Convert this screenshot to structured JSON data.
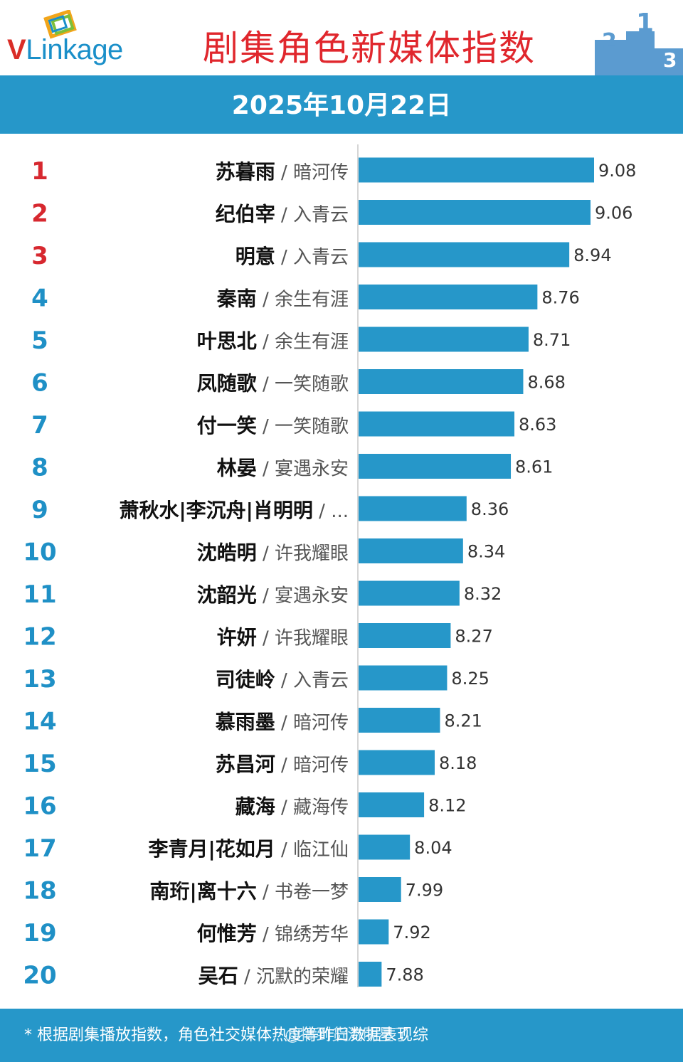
{
  "brand": {
    "v": "V",
    "rest": "Linkage"
  },
  "title": "剧集角色新媒体指数",
  "date": "2025年10月22日",
  "footer_note": "* 根据剧集播放指数，角色社交媒体热度等昨日数据表现综",
  "watermark": "@搞到货流明星了",
  "colors": {
    "bar": "#2697c9",
    "rank_top": "#d7282f",
    "rank_other": "#1f90c6",
    "title": "#e0272d"
  },
  "chart_data": {
    "type": "bar",
    "orientation": "horizontal",
    "categories": [
      "苏暮雨 / 暗河传",
      "纪伯宰 / 入青云",
      "明意 / 入青云",
      "秦南 / 余生有涯",
      "叶思北 / 余生有涯",
      "凤随歌 / 一笑随歌",
      "付一笑 / 一笑随歌",
      "林晏 / 宴遇永安",
      "萧秋水|李沉舟|肖明明 / ...",
      "沈皓明 / 许我耀眼",
      "沈韶光 / 宴遇永安",
      "许妍 / 许我耀眼",
      "司徒岭 / 入青云",
      "慕雨墨 / 暗河传",
      "苏昌河 / 暗河传",
      "藏海 / 藏海传",
      "李青月|花如月 / 临江仙",
      "南珩|离十六 / 书卷一梦",
      "何惟芳 / 锦绣芳华",
      "吴石 / 沉默的荣耀"
    ],
    "rows": [
      {
        "rank": "1",
        "role": "苏暮雨",
        "drama": "暗河传",
        "value": 9.08,
        "label": "9.08"
      },
      {
        "rank": "2",
        "role": "纪伯宰",
        "drama": "入青云",
        "value": 9.06,
        "label": "9.06"
      },
      {
        "rank": "3",
        "role": "明意",
        "drama": "入青云",
        "value": 8.94,
        "label": "8.94"
      },
      {
        "rank": "4",
        "role": "秦南",
        "drama": "余生有涯",
        "value": 8.76,
        "label": "8.76"
      },
      {
        "rank": "5",
        "role": "叶思北",
        "drama": "余生有涯",
        "value": 8.71,
        "label": "8.71"
      },
      {
        "rank": "6",
        "role": "凤随歌",
        "drama": "一笑随歌",
        "value": 8.68,
        "label": "8.68"
      },
      {
        "rank": "7",
        "role": "付一笑",
        "drama": "一笑随歌",
        "value": 8.63,
        "label": "8.63"
      },
      {
        "rank": "8",
        "role": "林晏",
        "drama": "宴遇永安",
        "value": 8.61,
        "label": "8.61"
      },
      {
        "rank": "9",
        "role": "萧秋水|李沉舟|肖明明",
        "drama": "...",
        "value": 8.36,
        "label": "8.36"
      },
      {
        "rank": "10",
        "role": "沈皓明",
        "drama": "许我耀眼",
        "value": 8.34,
        "label": "8.34"
      },
      {
        "rank": "11",
        "role": "沈韶光",
        "drama": "宴遇永安",
        "value": 8.32,
        "label": "8.32"
      },
      {
        "rank": "12",
        "role": "许妍",
        "drama": "许我耀眼",
        "value": 8.27,
        "label": "8.27"
      },
      {
        "rank": "13",
        "role": "司徒岭",
        "drama": "入青云",
        "value": 8.25,
        "label": "8.25"
      },
      {
        "rank": "14",
        "role": "慕雨墨",
        "drama": "暗河传",
        "value": 8.21,
        "label": "8.21"
      },
      {
        "rank": "15",
        "role": "苏昌河",
        "drama": "暗河传",
        "value": 8.18,
        "label": "8.18"
      },
      {
        "rank": "16",
        "role": "藏海",
        "drama": "藏海传",
        "value": 8.12,
        "label": "8.12"
      },
      {
        "rank": "17",
        "role": "李青月|花如月",
        "drama": "临江仙",
        "value": 8.04,
        "label": "8.04"
      },
      {
        "rank": "18",
        "role": "南珩|离十六",
        "drama": "书卷一梦",
        "value": 7.99,
        "label": "7.99"
      },
      {
        "rank": "19",
        "role": "何惟芳",
        "drama": "锦绣芳华",
        "value": 7.92,
        "label": "7.92"
      },
      {
        "rank": "20",
        "role": "吴石",
        "drama": "沉默的荣耀",
        "value": 7.88,
        "label": "7.88"
      }
    ],
    "xlim": [
      7.75,
      9.08
    ],
    "grid": false,
    "legend": "none"
  }
}
